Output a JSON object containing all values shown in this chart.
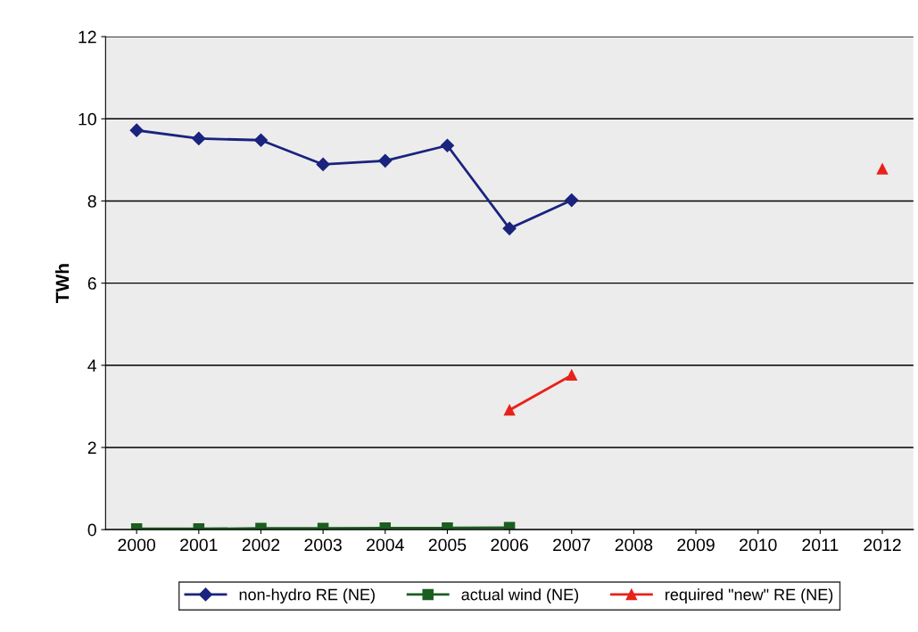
{
  "chart_data": {
    "type": "line",
    "ylabel": "TWh",
    "categories": [
      "2000",
      "2001",
      "2002",
      "2003",
      "2004",
      "2005",
      "2006",
      "2007",
      "2008",
      "2009",
      "2010",
      "2011",
      "2012"
    ],
    "series": [
      {
        "name": "non-hydro RE (NE)",
        "color": "#1a237e",
        "marker": "diamond",
        "values": [
          9.72,
          9.52,
          9.48,
          8.89,
          8.98,
          9.35,
          7.33,
          8.02,
          null,
          null,
          null,
          null,
          null
        ]
      },
      {
        "name": "actual wind (NE)",
        "color": "#1b5e20",
        "marker": "square",
        "values": [
          0.02,
          0.02,
          0.03,
          0.03,
          0.04,
          0.04,
          0.05,
          null,
          null,
          null,
          null,
          null,
          null
        ]
      },
      {
        "name": "required \"new\" RE (NE)",
        "color": "#e8221b",
        "marker": "triangle",
        "values": [
          null,
          null,
          null,
          null,
          null,
          null,
          2.91,
          3.76,
          null,
          null,
          null,
          null,
          8.78
        ]
      }
    ],
    "ylim": [
      0,
      12
    ],
    "yticks": [
      0,
      2,
      4,
      6,
      8,
      10,
      12
    ],
    "grid": "y",
    "legend": "bottom",
    "line_style": "solid"
  }
}
